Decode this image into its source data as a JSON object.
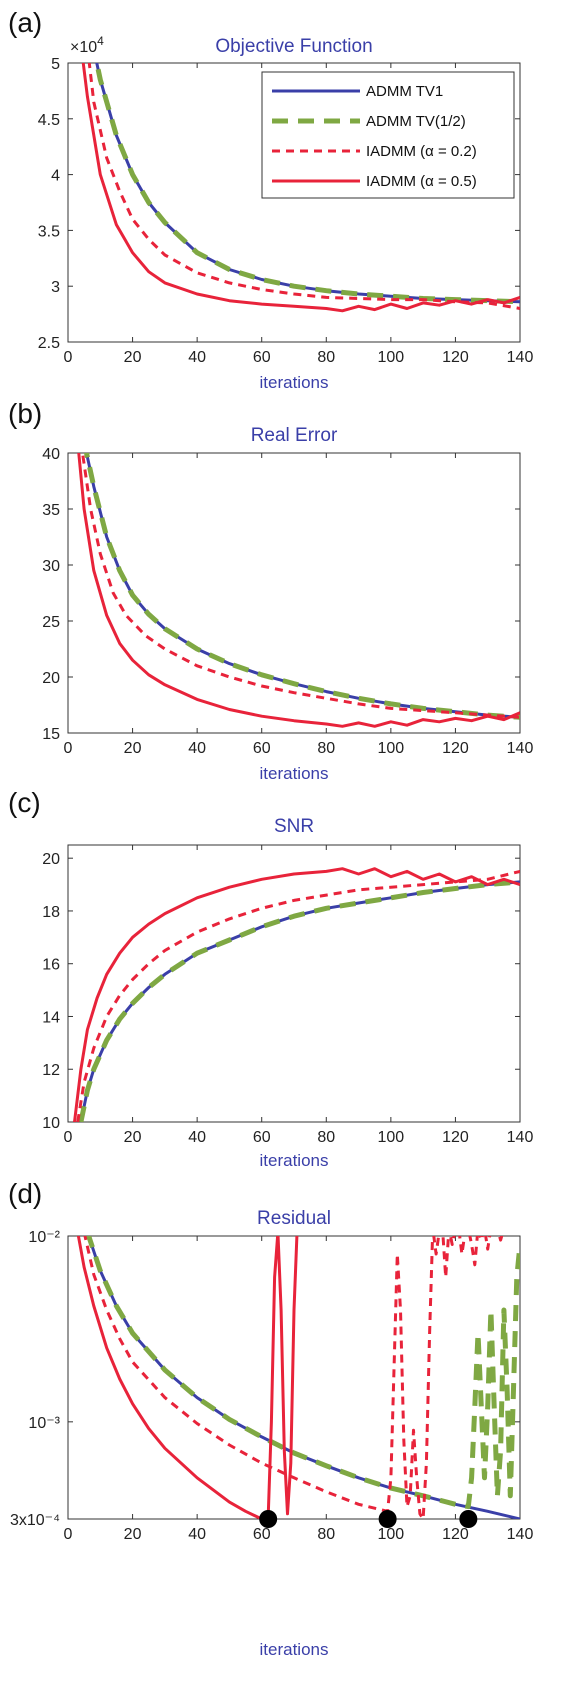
{
  "panels": [
    {
      "label": "(a)",
      "title": "Objective Function",
      "xlabel": "iterations",
      "exponent_label": "×10",
      "exponent_power": "4",
      "type": "line",
      "yscale": "linear",
      "xlim": [
        0,
        140
      ],
      "ylim": [
        2.5,
        5
      ],
      "xticks": [
        0,
        20,
        40,
        60,
        80,
        100,
        120,
        140
      ],
      "yticks": [
        2.5,
        3,
        3.5,
        4,
        4.5,
        5
      ],
      "ytick_labels": [
        "2.5",
        "3",
        "3.5",
        "4",
        "4.5",
        "5"
      ],
      "legend": {
        "position": "top-right",
        "entries": [
          "ADMM TV1",
          "ADMM TV(1/2)",
          "IADMM (α = 0.2)",
          "IADMM (α = 0.5)"
        ]
      },
      "series": [
        {
          "key": "admm_tv1",
          "x": [
            6,
            10,
            15,
            20,
            25,
            30,
            40,
            50,
            60,
            70,
            80,
            90,
            100,
            110,
            120,
            130,
            140
          ],
          "y": [
            5.4,
            4.85,
            4.35,
            4.0,
            3.75,
            3.57,
            3.3,
            3.15,
            3.06,
            3.0,
            2.96,
            2.93,
            2.91,
            2.89,
            2.88,
            2.87,
            2.86
          ]
        },
        {
          "key": "admm_tv_half",
          "x": [
            6,
            10,
            15,
            20,
            25,
            30,
            40,
            50,
            60,
            70,
            80,
            90,
            100,
            110,
            120,
            130,
            140
          ],
          "y": [
            5.4,
            4.85,
            4.35,
            4.0,
            3.75,
            3.57,
            3.3,
            3.15,
            3.06,
            3.0,
            2.96,
            2.93,
            2.91,
            2.89,
            2.88,
            2.87,
            2.86
          ]
        },
        {
          "key": "iadmm_02",
          "x": [
            5,
            8,
            12,
            16,
            20,
            25,
            30,
            40,
            50,
            60,
            70,
            80,
            90,
            100,
            110,
            120,
            130,
            140
          ],
          "y": [
            5.4,
            4.65,
            4.15,
            3.85,
            3.6,
            3.42,
            3.28,
            3.12,
            3.03,
            2.97,
            2.93,
            2.9,
            2.89,
            2.88,
            2.88,
            2.86,
            2.85,
            2.8
          ]
        },
        {
          "key": "iadmm_05",
          "x": [
            3,
            6,
            10,
            15,
            20,
            25,
            30,
            40,
            50,
            60,
            70,
            80,
            85,
            90,
            95,
            100,
            105,
            110,
            115,
            120,
            125,
            130,
            135,
            140
          ],
          "y": [
            5.4,
            4.7,
            4.0,
            3.55,
            3.3,
            3.13,
            3.03,
            2.93,
            2.87,
            2.84,
            2.82,
            2.8,
            2.78,
            2.82,
            2.79,
            2.84,
            2.8,
            2.85,
            2.83,
            2.87,
            2.84,
            2.88,
            2.85,
            2.9
          ]
        }
      ]
    },
    {
      "label": "(b)",
      "title": "Real Error",
      "xlabel": "iterations",
      "type": "line",
      "yscale": "linear",
      "xlim": [
        0,
        140
      ],
      "ylim": [
        15,
        40
      ],
      "xticks": [
        0,
        20,
        40,
        60,
        80,
        100,
        120,
        140
      ],
      "yticks": [
        15,
        20,
        25,
        30,
        35,
        40
      ],
      "ytick_labels": [
        "15",
        "20",
        "25",
        "30",
        "35",
        "40"
      ],
      "series": [
        {
          "key": "admm_tv1",
          "x": [
            5,
            8,
            12,
            16,
            20,
            25,
            30,
            40,
            50,
            60,
            70,
            80,
            90,
            100,
            110,
            120,
            130,
            140
          ],
          "y": [
            41,
            37,
            32.5,
            29.5,
            27.3,
            25.6,
            24.3,
            22.5,
            21.2,
            20.2,
            19.4,
            18.7,
            18.1,
            17.6,
            17.2,
            16.9,
            16.6,
            16.4
          ]
        },
        {
          "key": "admm_tv_half",
          "x": [
            5,
            8,
            12,
            16,
            20,
            25,
            30,
            40,
            50,
            60,
            70,
            80,
            90,
            100,
            110,
            120,
            130,
            140
          ],
          "y": [
            41,
            37,
            32.5,
            29.5,
            27.3,
            25.6,
            24.3,
            22.5,
            21.2,
            20.2,
            19.4,
            18.7,
            18.1,
            17.6,
            17.2,
            16.9,
            16.6,
            16.4
          ]
        },
        {
          "key": "iadmm_02",
          "x": [
            4,
            7,
            10,
            14,
            18,
            24,
            30,
            40,
            50,
            60,
            70,
            80,
            90,
            100,
            110,
            120,
            130,
            140
          ],
          "y": [
            41,
            35,
            31,
            27.5,
            25.5,
            23.7,
            22.5,
            21,
            20,
            19.2,
            18.6,
            18.1,
            17.6,
            17.2,
            17,
            16.8,
            16.6,
            16.4
          ]
        },
        {
          "key": "iadmm_05",
          "x": [
            3,
            5,
            8,
            12,
            16,
            20,
            25,
            30,
            40,
            50,
            60,
            70,
            80,
            85,
            90,
            95,
            100,
            105,
            110,
            115,
            120,
            125,
            130,
            135,
            140
          ],
          "y": [
            41,
            35,
            29.5,
            25.5,
            23,
            21.5,
            20.2,
            19.3,
            18,
            17.1,
            16.5,
            16.1,
            15.8,
            15.6,
            15.9,
            15.6,
            16.0,
            15.7,
            16.2,
            16.0,
            16.3,
            16.1,
            16.5,
            16.2,
            16.8
          ]
        }
      ]
    },
    {
      "label": "(c)",
      "title": "SNR",
      "xlabel": "iterations",
      "type": "line",
      "yscale": "linear",
      "xlim": [
        0,
        140
      ],
      "ylim": [
        10,
        20.5
      ],
      "xticks": [
        0,
        20,
        40,
        60,
        80,
        100,
        120,
        140
      ],
      "yticks": [
        10,
        12,
        14,
        16,
        18,
        20
      ],
      "ytick_labels": [
        "10",
        "12",
        "14",
        "16",
        "18",
        "20"
      ],
      "series": [
        {
          "key": "admm_tv1",
          "x": [
            4,
            6,
            8,
            12,
            16,
            20,
            25,
            30,
            40,
            50,
            60,
            70,
            80,
            90,
            100,
            110,
            120,
            130,
            140
          ],
          "y": [
            10,
            11.2,
            12.0,
            13.1,
            13.9,
            14.5,
            15.1,
            15.6,
            16.4,
            16.9,
            17.4,
            17.8,
            18.1,
            18.3,
            18.5,
            18.7,
            18.85,
            19.0,
            19.1
          ]
        },
        {
          "key": "admm_tv_half",
          "x": [
            4,
            6,
            8,
            12,
            16,
            20,
            25,
            30,
            40,
            50,
            60,
            70,
            80,
            90,
            100,
            110,
            120,
            130,
            140
          ],
          "y": [
            10,
            11.2,
            12.0,
            13.1,
            13.9,
            14.5,
            15.1,
            15.6,
            16.4,
            16.9,
            17.4,
            17.8,
            18.1,
            18.3,
            18.5,
            18.7,
            18.85,
            19.0,
            19.1
          ]
        },
        {
          "key": "iadmm_02",
          "x": [
            3,
            5,
            8,
            12,
            16,
            20,
            25,
            30,
            40,
            50,
            60,
            70,
            80,
            90,
            100,
            110,
            120,
            130,
            140
          ],
          "y": [
            10,
            11.5,
            12.8,
            14.0,
            14.8,
            15.4,
            16.0,
            16.5,
            17.2,
            17.7,
            18.1,
            18.4,
            18.6,
            18.8,
            18.9,
            19.0,
            19.1,
            19.2,
            19.5
          ]
        },
        {
          "key": "iadmm_05",
          "x": [
            2,
            4,
            6,
            9,
            12,
            16,
            20,
            25,
            30,
            40,
            50,
            60,
            70,
            80,
            85,
            90,
            95,
            100,
            105,
            110,
            115,
            120,
            125,
            130,
            135,
            140
          ],
          "y": [
            10,
            12.0,
            13.5,
            14.7,
            15.6,
            16.4,
            17.0,
            17.5,
            17.9,
            18.5,
            18.9,
            19.2,
            19.4,
            19.5,
            19.6,
            19.4,
            19.6,
            19.3,
            19.5,
            19.2,
            19.4,
            19.1,
            19.3,
            19.0,
            19.2,
            19.0
          ]
        }
      ]
    },
    {
      "label": "(d)",
      "title": "Residual",
      "xlabel": "iterations",
      "type": "line",
      "yscale": "log",
      "xlim": [
        0,
        140
      ],
      "ylim": [
        0.0003,
        0.01
      ],
      "xticks": [
        0,
        20,
        40,
        60,
        80,
        100,
        120,
        140
      ],
      "yticks": [
        0.01,
        0.001,
        0.0003
      ],
      "ytick_labels": [
        "10⁻²",
        "10⁻³",
        "3x10⁻⁴"
      ],
      "series": [
        {
          "key": "admm_tv1",
          "x": [
            6,
            10,
            15,
            20,
            30,
            40,
            50,
            60,
            70,
            80,
            90,
            100,
            110,
            120,
            130,
            140
          ],
          "y": [
            0.0105,
            0.0065,
            0.0042,
            0.003,
            0.0019,
            0.00135,
            0.00103,
            0.00083,
            0.00068,
            0.00058,
            0.0005,
            0.00044,
            0.0004,
            0.00036,
            0.00033,
            0.0003
          ]
        },
        {
          "key": "admm_tv_half",
          "x": [
            6,
            10,
            15,
            20,
            30,
            40,
            50,
            60,
            70,
            80,
            90,
            100,
            110,
            120,
            124,
            125,
            126,
            127,
            128,
            129,
            130,
            131,
            132,
            133,
            134,
            135,
            136,
            137,
            138,
            139,
            140
          ],
          "y": [
            0.0105,
            0.0065,
            0.0042,
            0.003,
            0.0019,
            0.00135,
            0.00103,
            0.00083,
            0.00068,
            0.00058,
            0.0005,
            0.00044,
            0.0004,
            0.00036,
            0.00035,
            0.0005,
            0.0012,
            0.003,
            0.0012,
            0.0005,
            0.0012,
            0.004,
            0.0012,
            0.0004,
            0.0007,
            0.004,
            0.0015,
            0.0004,
            0.0015,
            0.006,
            0.009
          ]
        },
        {
          "key": "iadmm_02",
          "x": [
            5,
            8,
            12,
            16,
            20,
            30,
            40,
            50,
            60,
            70,
            80,
            90,
            99,
            100,
            101,
            102,
            103,
            104,
            105,
            106,
            107,
            108,
            109,
            110,
            111,
            112,
            113,
            114,
            115,
            116,
            117,
            118,
            119,
            120,
            121,
            122,
            123,
            124,
            125,
            126,
            127,
            128,
            129,
            130,
            131,
            132,
            133,
            134,
            135,
            136
          ],
          "y": [
            0.0105,
            0.0062,
            0.004,
            0.0028,
            0.0021,
            0.00135,
            0.00098,
            0.00075,
            0.0006,
            0.0005,
            0.00042,
            0.00036,
            0.00033,
            0.0005,
            0.002,
            0.008,
            0.004,
            0.0008,
            0.00035,
            0.0004,
            0.0009,
            0.0005,
            0.00032,
            0.0003,
            0.0006,
            0.003,
            0.011,
            0.008,
            0.0106,
            0.011,
            0.006,
            0.011,
            0.009,
            0.0107,
            0.011,
            0.008,
            0.0105,
            0.011,
            0.009,
            0.007,
            0.011,
            0.0095,
            0.011,
            0.0085,
            0.011,
            0.0105,
            0.011,
            0.0095,
            0.011,
            0.011
          ]
        },
        {
          "key": "iadmm_05",
          "x": [
            3,
            5,
            8,
            12,
            16,
            20,
            25,
            30,
            40,
            50,
            55,
            60,
            62,
            63,
            64,
            65,
            66,
            67,
            68,
            69,
            70,
            71
          ],
          "y": [
            0.0105,
            0.0068,
            0.0042,
            0.0025,
            0.0017,
            0.00125,
            0.00092,
            0.00072,
            0.0005,
            0.00037,
            0.00033,
            0.0003,
            0.00031,
            0.001,
            0.006,
            0.0105,
            0.004,
            0.0007,
            0.00032,
            0.0006,
            0.004,
            0.011
          ]
        }
      ],
      "markers": {
        "x": [
          62,
          99,
          124
        ],
        "y": [
          0.0003,
          0.0003,
          0.0003
        ]
      }
    }
  ],
  "styles": {
    "admm_tv1": {
      "color": "#3a3fa8",
      "width": 3,
      "dash": ""
    },
    "admm_tv_half": {
      "color": "#7fa843",
      "width": 5,
      "dash": "16,10"
    },
    "iadmm_02": {
      "color": "#e8233a",
      "width": 3,
      "dash": "8,6"
    },
    "iadmm_05": {
      "color": "#e8233a",
      "width": 3,
      "dash": ""
    }
  }
}
